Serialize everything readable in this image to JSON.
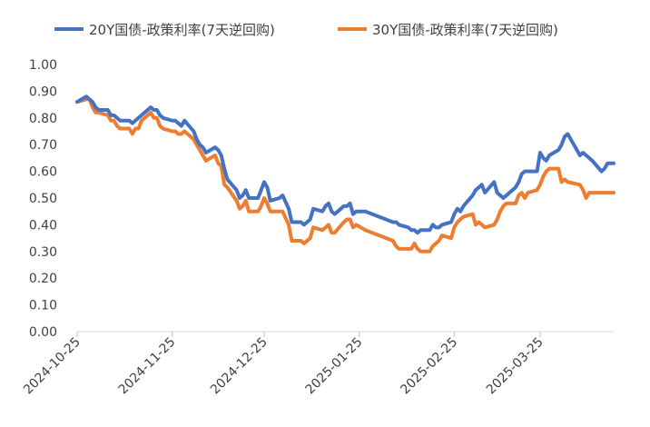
{
  "chart_data": {
    "type": "line",
    "title": "",
    "xlabel": "",
    "ylabel": "",
    "ylim": [
      0.0,
      1.0
    ],
    "y_ticks": [
      "0.00",
      "0.10",
      "0.20",
      "0.30",
      "0.40",
      "0.50",
      "0.60",
      "0.70",
      "0.80",
      "0.90",
      "1.00"
    ],
    "x_ticks": [
      "2024-10-25",
      "2024-11-25",
      "2024-12-25",
      "2025-01-25",
      "2025-02-25",
      "2025-03-25"
    ],
    "x_range": [
      "2024-10-25",
      "2025-04-18"
    ],
    "grid": false,
    "legend_position": "top",
    "series": [
      {
        "name": "20Y国债-政策利率(7天逆回购)",
        "color": "#4472C4",
        "points": [
          [
            "2024-10-25",
            0.86
          ],
          [
            "2024-10-28",
            0.88
          ],
          [
            "2024-10-29",
            0.87
          ],
          [
            "2024-10-30",
            0.86
          ],
          [
            "2024-10-31",
            0.84
          ],
          [
            "2024-11-01",
            0.83
          ],
          [
            "2024-11-04",
            0.83
          ],
          [
            "2024-11-05",
            0.81
          ],
          [
            "2024-11-06",
            0.81
          ],
          [
            "2024-11-07",
            0.8
          ],
          [
            "2024-11-08",
            0.79
          ],
          [
            "2024-11-11",
            0.79
          ],
          [
            "2024-11-12",
            0.78
          ],
          [
            "2024-11-13",
            0.79
          ],
          [
            "2024-11-14",
            0.8
          ],
          [
            "2024-11-15",
            0.81
          ],
          [
            "2024-11-18",
            0.84
          ],
          [
            "2024-11-19",
            0.83
          ],
          [
            "2024-11-20",
            0.83
          ],
          [
            "2024-11-21",
            0.81
          ],
          [
            "2024-11-22",
            0.8
          ],
          [
            "2024-11-25",
            0.79
          ],
          [
            "2024-11-26",
            0.79
          ],
          [
            "2024-11-27",
            0.78
          ],
          [
            "2024-11-28",
            0.77
          ],
          [
            "2024-11-29",
            0.79
          ],
          [
            "2024-12-02",
            0.75
          ],
          [
            "2024-12-03",
            0.72
          ],
          [
            "2024-12-04",
            0.7
          ],
          [
            "2024-12-05",
            0.69
          ],
          [
            "2024-12-06",
            0.67
          ],
          [
            "2024-12-09",
            0.69
          ],
          [
            "2024-12-10",
            0.68
          ],
          [
            "2024-12-11",
            0.66
          ],
          [
            "2024-12-12",
            0.61
          ],
          [
            "2024-12-13",
            0.57
          ],
          [
            "2024-12-16",
            0.53
          ],
          [
            "2024-12-17",
            0.5
          ],
          [
            "2024-12-18",
            0.51
          ],
          [
            "2024-12-19",
            0.53
          ],
          [
            "2024-12-20",
            0.5
          ],
          [
            "2024-12-23",
            0.5
          ],
          [
            "2024-12-24",
            0.53
          ],
          [
            "2024-12-25",
            0.56
          ],
          [
            "2024-12-26",
            0.54
          ],
          [
            "2024-12-27",
            0.49
          ],
          [
            "2024-12-30",
            0.5
          ],
          [
            "2024-12-31",
            0.51
          ],
          [
            "2025-01-02",
            0.46
          ],
          [
            "2025-01-03",
            0.41
          ],
          [
            "2025-01-06",
            0.41
          ],
          [
            "2025-01-07",
            0.4
          ],
          [
            "2025-01-08",
            0.41
          ],
          [
            "2025-01-09",
            0.42
          ],
          [
            "2025-01-10",
            0.46
          ],
          [
            "2025-01-13",
            0.45
          ],
          [
            "2025-01-14",
            0.47
          ],
          [
            "2025-01-15",
            0.48
          ],
          [
            "2025-01-16",
            0.45
          ],
          [
            "2025-01-17",
            0.44
          ],
          [
            "2025-01-20",
            0.47
          ],
          [
            "2025-01-21",
            0.47
          ],
          [
            "2025-01-22",
            0.48
          ],
          [
            "2025-01-23",
            0.44
          ],
          [
            "2025-01-24",
            0.45
          ],
          [
            "2025-01-27",
            0.45
          ],
          [
            "2025-02-05",
            0.41
          ],
          [
            "2025-02-06",
            0.41
          ],
          [
            "2025-02-07",
            0.4
          ],
          [
            "2025-02-10",
            0.39
          ],
          [
            "2025-02-11",
            0.38
          ],
          [
            "2025-02-12",
            0.38
          ],
          [
            "2025-02-13",
            0.37
          ],
          [
            "2025-02-14",
            0.38
          ],
          [
            "2025-02-17",
            0.38
          ],
          [
            "2025-02-18",
            0.4
          ],
          [
            "2025-02-19",
            0.39
          ],
          [
            "2025-02-20",
            0.39
          ],
          [
            "2025-02-21",
            0.4
          ],
          [
            "2025-02-24",
            0.41
          ],
          [
            "2025-02-25",
            0.44
          ],
          [
            "2025-02-26",
            0.46
          ],
          [
            "2025-02-27",
            0.45
          ],
          [
            "2025-02-28",
            0.47
          ],
          [
            "2025-03-03",
            0.51
          ],
          [
            "2025-03-04",
            0.53
          ],
          [
            "2025-03-05",
            0.54
          ],
          [
            "2025-03-06",
            0.55
          ],
          [
            "2025-03-07",
            0.52
          ],
          [
            "2025-03-10",
            0.56
          ],
          [
            "2025-03-11",
            0.52
          ],
          [
            "2025-03-12",
            0.51
          ],
          [
            "2025-03-13",
            0.5
          ],
          [
            "2025-03-14",
            0.51
          ],
          [
            "2025-03-17",
            0.54
          ],
          [
            "2025-03-18",
            0.56
          ],
          [
            "2025-03-19",
            0.59
          ],
          [
            "2025-03-20",
            0.6
          ],
          [
            "2025-03-21",
            0.6
          ],
          [
            "2025-03-24",
            0.6
          ],
          [
            "2025-03-25",
            0.67
          ],
          [
            "2025-03-26",
            0.65
          ],
          [
            "2025-03-27",
            0.64
          ],
          [
            "2025-03-28",
            0.66
          ],
          [
            "2025-03-31",
            0.68
          ],
          [
            "2025-04-01",
            0.7
          ],
          [
            "2025-04-02",
            0.73
          ],
          [
            "2025-04-03",
            0.74
          ],
          [
            "2025-04-07",
            0.66
          ],
          [
            "2025-04-08",
            0.67
          ],
          [
            "2025-04-09",
            0.66
          ],
          [
            "2025-04-10",
            0.65
          ],
          [
            "2025-04-11",
            0.64
          ],
          [
            "2025-04-14",
            0.6
          ],
          [
            "2025-04-15",
            0.61
          ],
          [
            "2025-04-16",
            0.63
          ],
          [
            "2025-04-17",
            0.63
          ],
          [
            "2025-04-18",
            0.63
          ]
        ]
      },
      {
        "name": "30Y国债-政策利率(7天逆回购)",
        "color": "#ED7D31",
        "points": [
          [
            "2024-10-25",
            0.86
          ],
          [
            "2024-10-28",
            0.87
          ],
          [
            "2024-10-29",
            0.87
          ],
          [
            "2024-10-30",
            0.84
          ],
          [
            "2024-10-31",
            0.82
          ],
          [
            "2024-11-01",
            0.82
          ],
          [
            "2024-11-04",
            0.81
          ],
          [
            "2024-11-05",
            0.79
          ],
          [
            "2024-11-06",
            0.79
          ],
          [
            "2024-11-07",
            0.77
          ],
          [
            "2024-11-08",
            0.76
          ],
          [
            "2024-11-11",
            0.76
          ],
          [
            "2024-11-12",
            0.74
          ],
          [
            "2024-11-13",
            0.76
          ],
          [
            "2024-11-14",
            0.76
          ],
          [
            "2024-11-15",
            0.79
          ],
          [
            "2024-11-18",
            0.82
          ],
          [
            "2024-11-19",
            0.8
          ],
          [
            "2024-11-20",
            0.8
          ],
          [
            "2024-11-21",
            0.77
          ],
          [
            "2024-11-22",
            0.76
          ],
          [
            "2024-11-25",
            0.75
          ],
          [
            "2024-11-26",
            0.75
          ],
          [
            "2024-11-27",
            0.74
          ],
          [
            "2024-11-28",
            0.74
          ],
          [
            "2024-11-29",
            0.75
          ],
          [
            "2024-12-02",
            0.72
          ],
          [
            "2024-12-03",
            0.7
          ],
          [
            "2024-12-04",
            0.68
          ],
          [
            "2024-12-05",
            0.66
          ],
          [
            "2024-12-06",
            0.64
          ],
          [
            "2024-12-09",
            0.66
          ],
          [
            "2024-12-10",
            0.63
          ],
          [
            "2024-12-11",
            0.62
          ],
          [
            "2024-12-12",
            0.55
          ],
          [
            "2024-12-13",
            0.54
          ],
          [
            "2024-12-16",
            0.49
          ],
          [
            "2024-12-17",
            0.46
          ],
          [
            "2024-12-18",
            0.47
          ],
          [
            "2024-12-19",
            0.49
          ],
          [
            "2024-12-20",
            0.45
          ],
          [
            "2024-12-23",
            0.45
          ],
          [
            "2024-12-24",
            0.47
          ],
          [
            "2024-12-25",
            0.5
          ],
          [
            "2024-12-26",
            0.48
          ],
          [
            "2024-12-27",
            0.45
          ],
          [
            "2024-12-30",
            0.45
          ],
          [
            "2024-12-31",
            0.45
          ],
          [
            "2025-01-02",
            0.4
          ],
          [
            "2025-01-03",
            0.34
          ],
          [
            "2025-01-06",
            0.34
          ],
          [
            "2025-01-07",
            0.33
          ],
          [
            "2025-01-08",
            0.34
          ],
          [
            "2025-01-09",
            0.35
          ],
          [
            "2025-01-10",
            0.39
          ],
          [
            "2025-01-13",
            0.38
          ],
          [
            "2025-01-14",
            0.39
          ],
          [
            "2025-01-15",
            0.4
          ],
          [
            "2025-01-16",
            0.37
          ],
          [
            "2025-01-17",
            0.37
          ],
          [
            "2025-01-20",
            0.41
          ],
          [
            "2025-01-21",
            0.42
          ],
          [
            "2025-01-22",
            0.42
          ],
          [
            "2025-01-23",
            0.39
          ],
          [
            "2025-01-24",
            0.4
          ],
          [
            "2025-01-27",
            0.38
          ],
          [
            "2025-02-05",
            0.34
          ],
          [
            "2025-02-06",
            0.32
          ],
          [
            "2025-02-07",
            0.31
          ],
          [
            "2025-02-10",
            0.31
          ],
          [
            "2025-02-11",
            0.31
          ],
          [
            "2025-02-12",
            0.33
          ],
          [
            "2025-02-13",
            0.31
          ],
          [
            "2025-02-14",
            0.3
          ],
          [
            "2025-02-17",
            0.3
          ],
          [
            "2025-02-18",
            0.32
          ],
          [
            "2025-02-19",
            0.33
          ],
          [
            "2025-02-20",
            0.34
          ],
          [
            "2025-02-21",
            0.36
          ],
          [
            "2025-02-24",
            0.35
          ],
          [
            "2025-02-25",
            0.39
          ],
          [
            "2025-02-26",
            0.41
          ],
          [
            "2025-02-27",
            0.42
          ],
          [
            "2025-02-28",
            0.43
          ],
          [
            "2025-03-03",
            0.44
          ],
          [
            "2025-03-04",
            0.4
          ],
          [
            "2025-03-05",
            0.41
          ],
          [
            "2025-03-06",
            0.4
          ],
          [
            "2025-03-07",
            0.39
          ],
          [
            "2025-03-10",
            0.4
          ],
          [
            "2025-03-11",
            0.42
          ],
          [
            "2025-03-12",
            0.45
          ],
          [
            "2025-03-13",
            0.47
          ],
          [
            "2025-03-14",
            0.48
          ],
          [
            "2025-03-17",
            0.48
          ],
          [
            "2025-03-18",
            0.51
          ],
          [
            "2025-03-19",
            0.52
          ],
          [
            "2025-03-20",
            0.5
          ],
          [
            "2025-03-21",
            0.52
          ],
          [
            "2025-03-24",
            0.53
          ],
          [
            "2025-03-25",
            0.55
          ],
          [
            "2025-03-26",
            0.58
          ],
          [
            "2025-03-27",
            0.6
          ],
          [
            "2025-03-28",
            0.61
          ],
          [
            "2025-03-31",
            0.61
          ],
          [
            "2025-04-01",
            0.56
          ],
          [
            "2025-04-02",
            0.57
          ],
          [
            "2025-04-03",
            0.56
          ],
          [
            "2025-04-07",
            0.55
          ],
          [
            "2025-04-08",
            0.53
          ],
          [
            "2025-04-09",
            0.5
          ],
          [
            "2025-04-10",
            0.52
          ],
          [
            "2025-04-11",
            0.52
          ],
          [
            "2025-04-14",
            0.52
          ],
          [
            "2025-04-15",
            0.52
          ],
          [
            "2025-04-16",
            0.52
          ],
          [
            "2025-04-17",
            0.52
          ],
          [
            "2025-04-18",
            0.52
          ]
        ]
      }
    ]
  }
}
